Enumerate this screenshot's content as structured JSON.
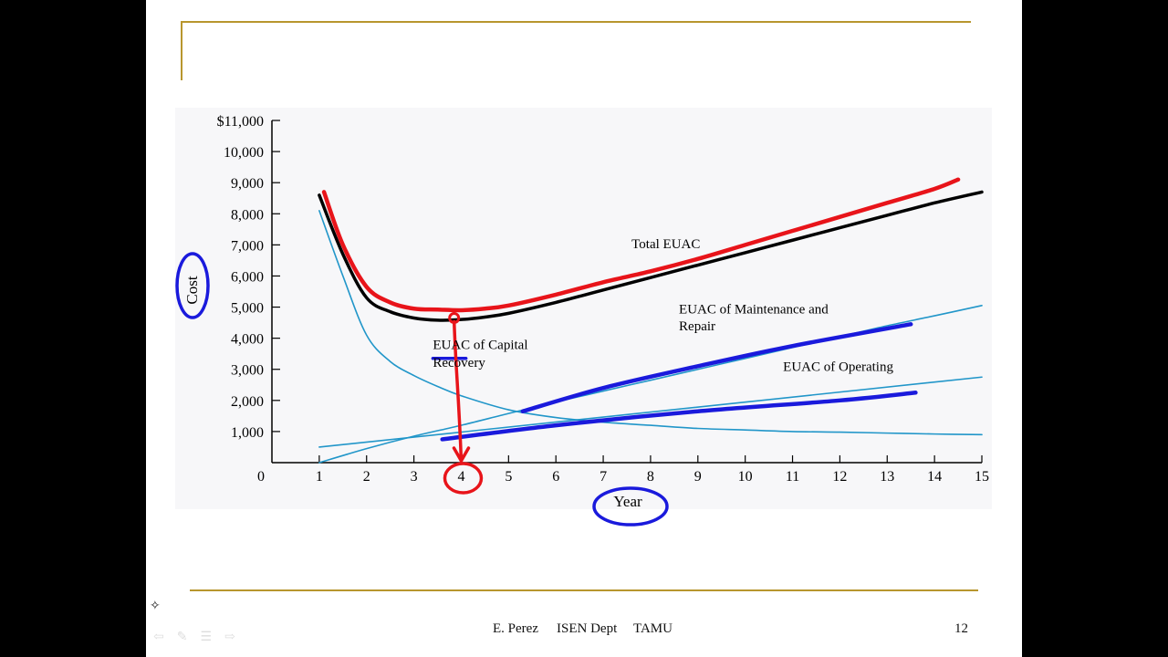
{
  "footer": {
    "author": "E. Perez",
    "dept": "ISEN Dept",
    "school": "TAMU",
    "page_number": "12"
  },
  "colors": {
    "total_curve": "#000000",
    "component_curves": "#2196c9",
    "annotation_red": "#e8141a",
    "annotation_blue": "#1a1adc",
    "gold_rule": "#b8962e"
  },
  "chart_data": {
    "type": "line",
    "title": "",
    "xlabel": "Year",
    "ylabel": "Cost",
    "xlim": [
      0,
      15
    ],
    "ylim": [
      0,
      11000
    ],
    "x_ticks": [
      "0",
      "1",
      "2",
      "3",
      "4",
      "5",
      "6",
      "7",
      "8",
      "9",
      "10",
      "11",
      "12",
      "13",
      "14",
      "15"
    ],
    "y_ticks": [
      "$11,000",
      "10,000",
      "9,000",
      "8,000",
      "7,000",
      "6,000",
      "5,000",
      "4,000",
      "3,000",
      "2,000",
      "1,000"
    ],
    "y_tick_values": [
      11000,
      10000,
      9000,
      8000,
      7000,
      6000,
      5000,
      4000,
      3000,
      2000,
      1000
    ],
    "legend": "none",
    "grid": false,
    "series": [
      {
        "name": "Total EUAC",
        "x": [
          1,
          1.5,
          2,
          2.5,
          3,
          3.5,
          4,
          4.5,
          5,
          6,
          7,
          8,
          9,
          10,
          11,
          12,
          13,
          14,
          15
        ],
        "y": [
          8600,
          6700,
          5300,
          4850,
          4650,
          4580,
          4600,
          4680,
          4800,
          5150,
          5550,
          5950,
          6350,
          6750,
          7150,
          7550,
          7950,
          8350,
          8700
        ]
      },
      {
        "name": "EUAC of Capital Recovery",
        "x": [
          1,
          1.5,
          2,
          2.5,
          3,
          3.5,
          4,
          5,
          6,
          7,
          8,
          9,
          10,
          11,
          12,
          13,
          14,
          15
        ],
        "y": [
          8100,
          6000,
          4100,
          3250,
          2800,
          2450,
          2150,
          1700,
          1450,
          1300,
          1200,
          1100,
          1050,
          1000,
          980,
          950,
          920,
          900
        ]
      },
      {
        "name": "EUAC of Maintenance and Repair",
        "x": [
          1,
          2,
          3,
          4,
          5,
          6,
          7,
          8,
          9,
          10,
          11,
          12,
          13,
          14,
          15
        ],
        "y": [
          0,
          450,
          850,
          1200,
          1580,
          1950,
          2300,
          2650,
          3000,
          3350,
          3700,
          4050,
          4400,
          4720,
          5050
        ]
      },
      {
        "name": "EUAC of Operating",
        "x": [
          1,
          15
        ],
        "y": [
          500,
          2750
        ]
      }
    ],
    "annotations": [
      {
        "text": "Total EUAC",
        "x": 7.6,
        "y": 6900
      },
      {
        "text": "EUAC of Maintenance and",
        "x": 8.6,
        "y": 4800
      },
      {
        "text": "Repair",
        "x": 8.6,
        "y": 4250
      },
      {
        "text": "EUAC of Capital",
        "x": 3.4,
        "y": 3650
      },
      {
        "text": "Recovery",
        "x": 3.4,
        "y": 3080
      },
      {
        "text": "EUAC of Operating",
        "x": 10.8,
        "y": 2950
      }
    ],
    "handwritten_markup": {
      "red_total_trace": {
        "x": [
          1.1,
          1.5,
          2,
          2.5,
          3,
          3.5,
          4,
          4.5,
          5,
          6,
          7,
          8,
          9,
          10,
          11,
          12,
          13,
          14,
          14.5
        ],
        "y": [
          8700,
          7000,
          5650,
          5150,
          4950,
          4920,
          4900,
          4950,
          5050,
          5400,
          5800,
          6150,
          6550,
          7000,
          7450,
          7900,
          8350,
          8800,
          9100
        ]
      },
      "red_minimum_marker": {
        "x": 3.85,
        "y": 4650
      },
      "blue_maintenance_trace": {
        "x": [
          5.3,
          7,
          9,
          11,
          13.5
        ],
        "y": [
          1650,
          2400,
          3100,
          3750,
          4450
        ]
      },
      "blue_operating_trace": {
        "x": [
          3.6,
          6,
          9,
          12,
          13.6
        ],
        "y": [
          750,
          1200,
          1650,
          2000,
          2250
        ]
      },
      "blue_capital_underline": {
        "x": [
          3.4,
          4.1
        ],
        "y": [
          3350,
          3350
        ]
      }
    }
  }
}
